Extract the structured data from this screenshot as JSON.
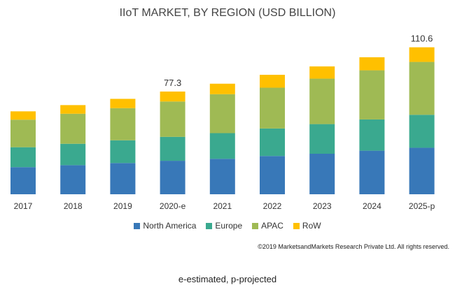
{
  "chart_data": {
    "type": "bar",
    "stacked": true,
    "title": "IIoT MARKET, BY REGION (USD BILLION)",
    "categories": [
      "2017",
      "2018",
      "2019",
      "2020-e",
      "2021",
      "2022",
      "2023",
      "2024",
      "2025-p"
    ],
    "series": [
      {
        "name": "North America",
        "color": "#3878b8",
        "values": [
          20.4,
          21.9,
          23.5,
          25.2,
          26.7,
          28.8,
          30.5,
          32.8,
          35.0
        ]
      },
      {
        "name": "Europe",
        "color": "#3aa98f",
        "values": [
          15.0,
          16.1,
          17.1,
          18.0,
          19.3,
          20.7,
          22.3,
          23.5,
          24.8
        ]
      },
      {
        "name": "APAC",
        "color": "#9fba54",
        "values": [
          20.7,
          22.6,
          24.2,
          26.6,
          29.3,
          30.7,
          34.2,
          37.0,
          39.8
        ]
      },
      {
        "name": "RoW",
        "color": "#ffc000",
        "values": [
          6.3,
          6.5,
          7.0,
          7.5,
          7.9,
          9.7,
          9.2,
          9.8,
          11.0
        ]
      }
    ],
    "data_labels": [
      {
        "category": "2020-e",
        "text": "77.3"
      },
      {
        "category": "2025-p",
        "text": "110.6"
      }
    ],
    "xlabel": "",
    "ylabel": "",
    "ylim": [
      0,
      120
    ],
    "grid": false,
    "legend_position": "bottom"
  },
  "copyright": "©2019 MarketsandMarkets Research Private Ltd. All rights reserved.",
  "footnote": "e-estimated, p-projected"
}
